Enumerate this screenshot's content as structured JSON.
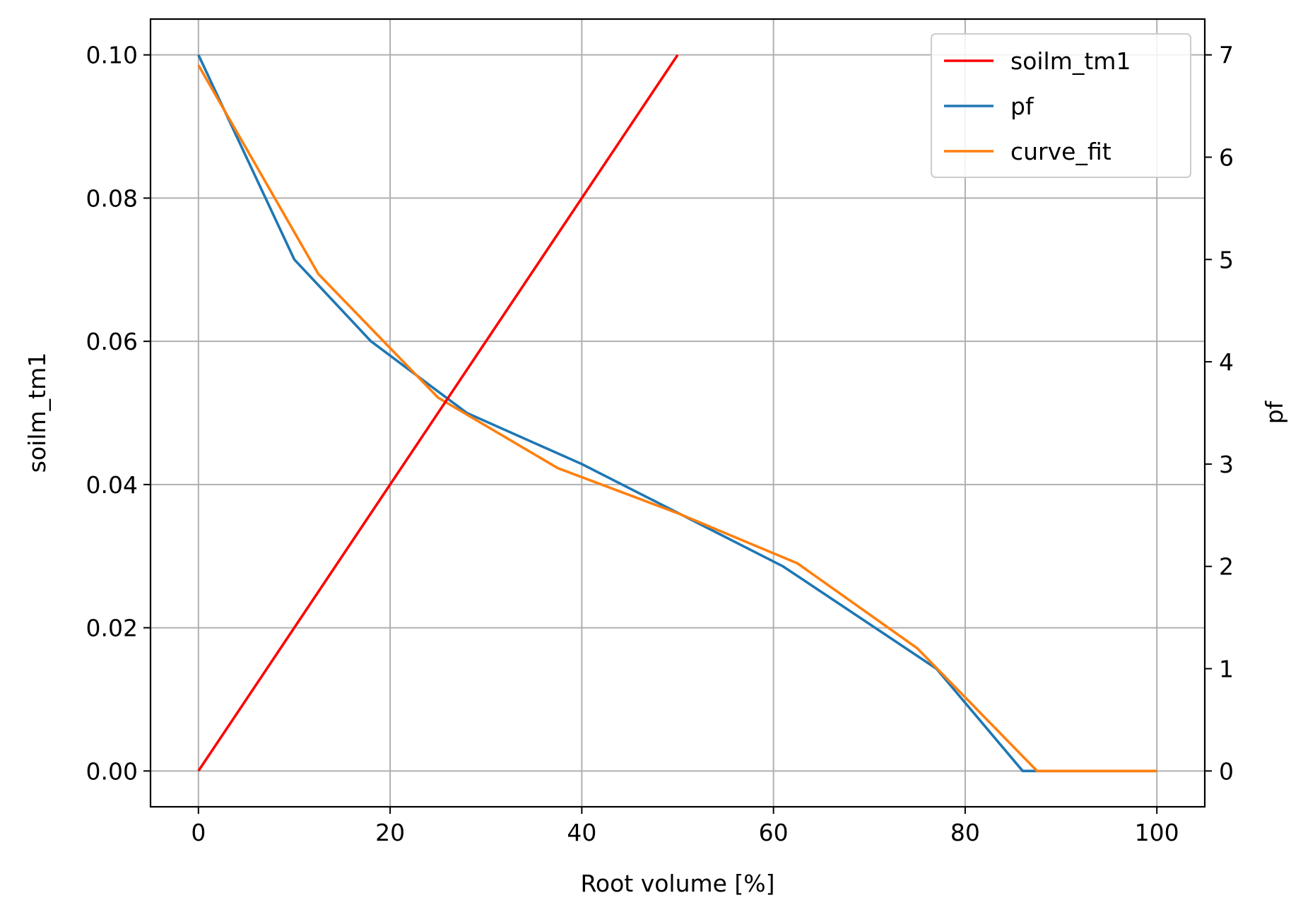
{
  "chart_data": {
    "type": "line",
    "xlabel": "Root volume [%]",
    "ylabel_left": "soilm_tm1",
    "ylabel_right": "pf",
    "xlim": [
      -5,
      105
    ],
    "ylim_left": [
      -0.005,
      0.105
    ],
    "ylim_right": [
      -0.35,
      7.35
    ],
    "xticks": [
      0,
      20,
      40,
      60,
      80,
      100
    ],
    "yticks_left": [
      0.0,
      0.02,
      0.04,
      0.06,
      0.08,
      0.1
    ],
    "yticks_left_labels": [
      "0.00",
      "0.02",
      "0.04",
      "0.06",
      "0.08",
      "0.10"
    ],
    "yticks_right": [
      0,
      1,
      2,
      3,
      4,
      5,
      6,
      7
    ],
    "grid": true,
    "legend_position": "upper-right",
    "series": [
      {
        "name": "soilm_tm1",
        "axis": "left",
        "color": "#ff0000",
        "x": [
          0,
          50
        ],
        "y": [
          0.0,
          0.1
        ]
      },
      {
        "name": "pf",
        "axis": "right",
        "color": "#1f77b4",
        "x": [
          0,
          10,
          18,
          28,
          40,
          61,
          77,
          86,
          87.5,
          100
        ],
        "y": [
          7.0,
          5.0,
          4.2,
          3.5,
          3.0,
          2.0,
          1.0,
          0.0,
          0.0,
          0.0
        ]
      },
      {
        "name": "curve_fit",
        "axis": "right",
        "color": "#ff7f0e",
        "x": [
          0,
          12.5,
          25,
          37.5,
          50,
          62.5,
          75,
          87.5,
          100
        ],
        "y": [
          6.9,
          4.86,
          3.65,
          2.96,
          2.52,
          2.03,
          1.2,
          0.0,
          0.0
        ]
      }
    ]
  }
}
